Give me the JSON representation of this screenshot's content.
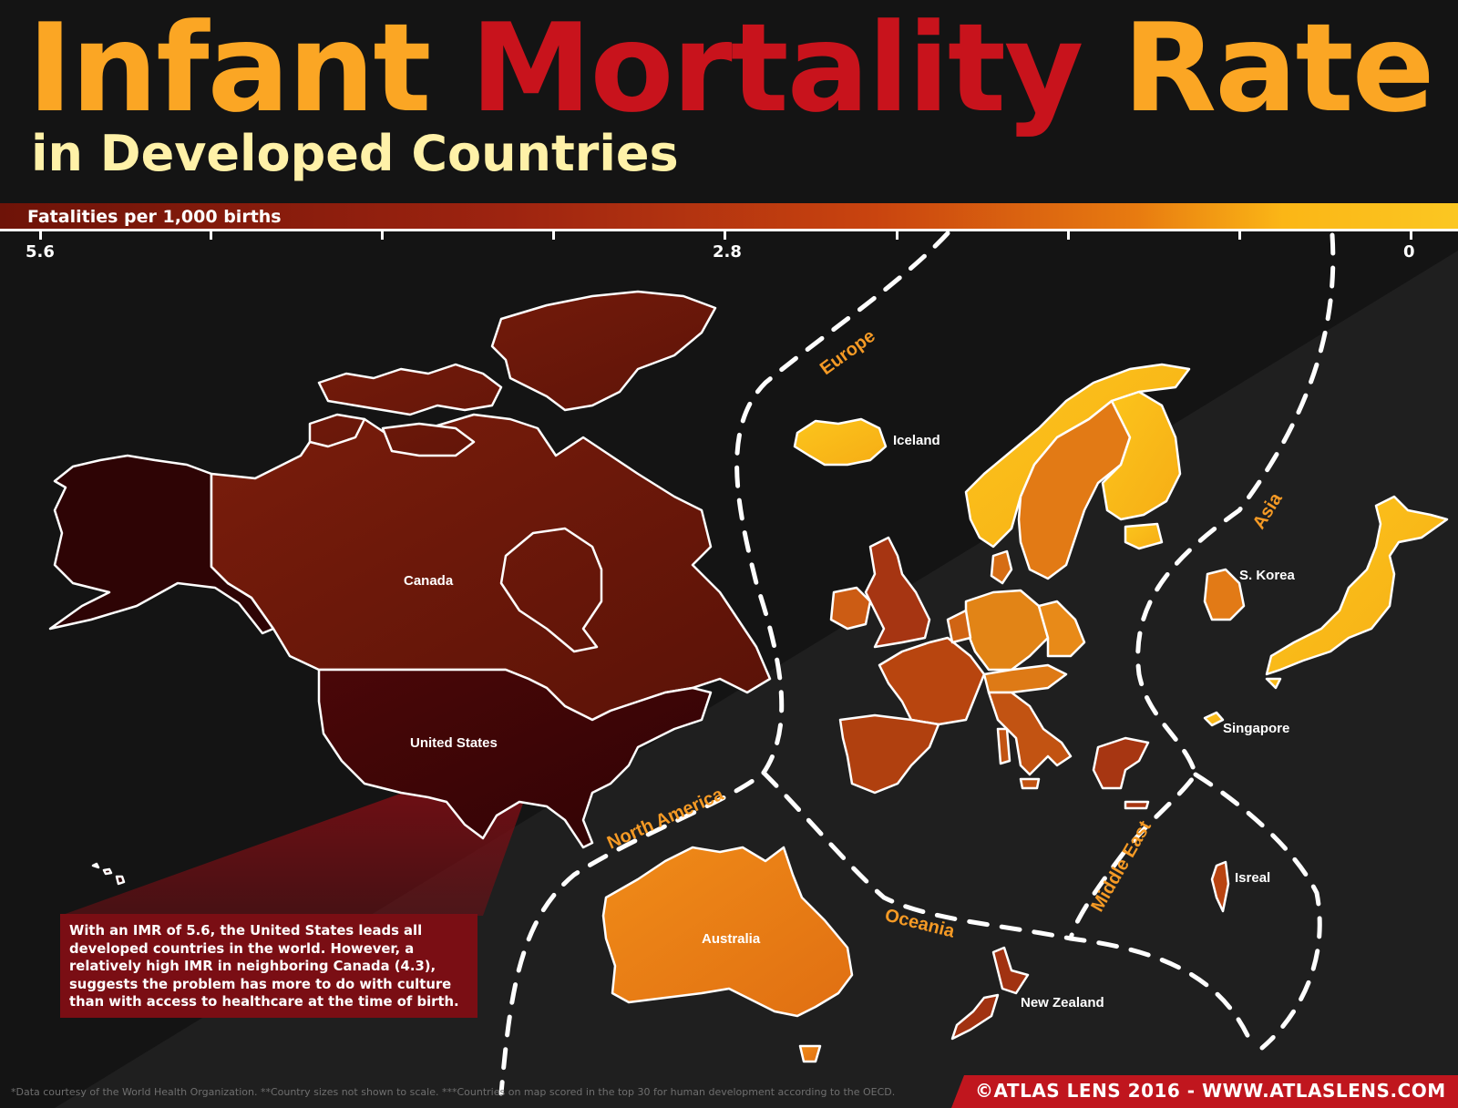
{
  "title": {
    "word1": "Infant ",
    "word2": "Mortality",
    "word3": " Rate",
    "subtitle": "in Developed Countries"
  },
  "colors": {
    "title_orange": "#fba624",
    "title_red": "#c8131c",
    "subtitle_cream": "#fff1a8",
    "region_label": "#f59a25",
    "callout_bg": "#7a0e14",
    "credit_bg": "#c0161e"
  },
  "scale": {
    "label": "Fatalities per 1,000 births",
    "ticks": [
      "5.6",
      "2.8",
      "0"
    ]
  },
  "regions": {
    "europe": "Europe",
    "asia": "Asia",
    "north_america": "North America",
    "oceania": "Oceania",
    "middle_east": "Middle East"
  },
  "countries": {
    "canada": "Canada",
    "united_states": "United States",
    "iceland": "Iceland",
    "s_korea": "S. Korea",
    "singapore": "Singapore",
    "israel": "Isreal",
    "australia": "Australia",
    "new_zealand": "New Zealand"
  },
  "callout": "With an IMR of 5.6, the United States leads all developed countries in the world. However, a relatively high IMR in neighboring Canada (4.3), suggests the problem has more to do with culture than with access to healthcare at the time of birth.",
  "footnote": "*Data courtesy of the  World Health Organization.    **Country sizes not shown to scale.    ***Countries on map scored in the top 30 for human development according to the OECD.",
  "credit": "©ATLAS LENS 2016 - WWW.ATLASLENS.COM"
}
